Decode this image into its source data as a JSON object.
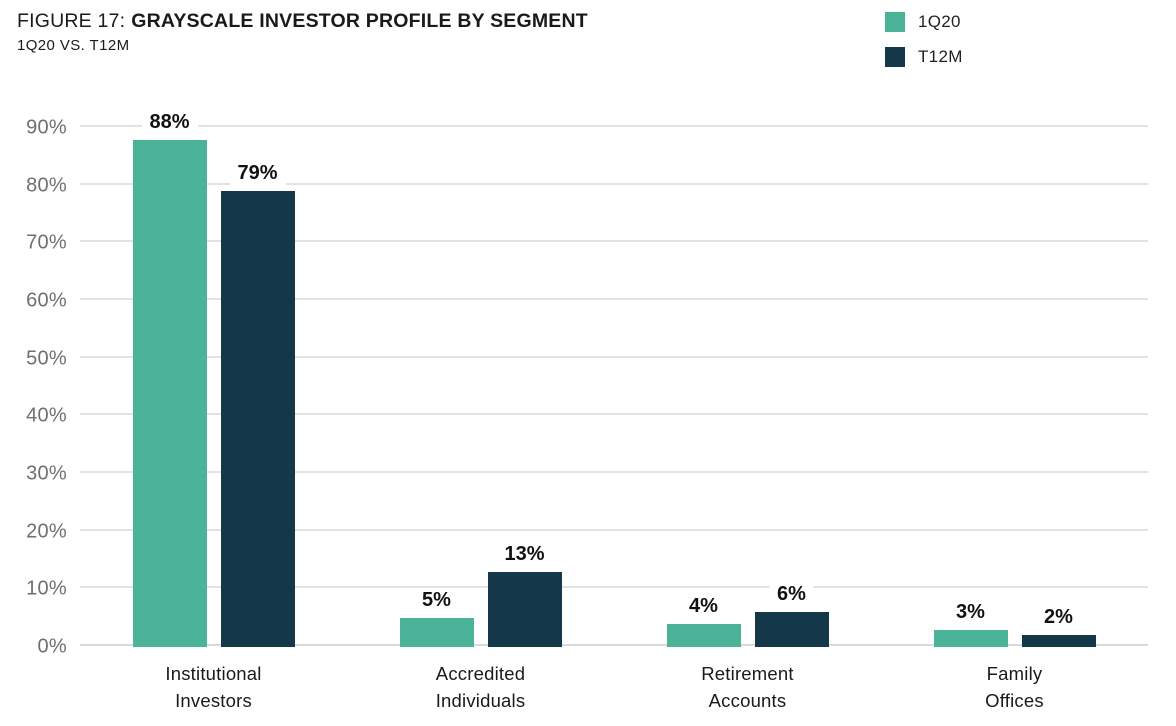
{
  "figure": {
    "title_prefix": "FIGURE 17:",
    "title_main": "GRAYSCALE INVESTOR PROFILE BY SEGMENT",
    "subtitle": "1Q20 VS. T12M"
  },
  "legend": [
    {
      "label": "1Q20",
      "color": "#4bb398"
    },
    {
      "label": "T12M",
      "color": "#14374a"
    }
  ],
  "chart_data": {
    "type": "bar",
    "title": "FIGURE 17: GRAYSCALE INVESTOR PROFILE BY SEGMENT",
    "subtitle": "1Q20 VS. T12M",
    "categories": [
      "Institutional\nInvestors",
      "Accredited\nIndividuals",
      "Retirement\nAccounts",
      "Family\nOffices"
    ],
    "series": [
      {
        "name": "1Q20",
        "color": "#4bb398",
        "values": [
          88,
          5,
          4,
          3
        ]
      },
      {
        "name": "T12M",
        "color": "#14374a",
        "values": [
          79,
          13,
          6,
          2
        ]
      }
    ],
    "value_suffix": "%",
    "xlabel": "",
    "ylabel": "",
    "ylim": [
      0,
      90
    ],
    "yticks": [
      0,
      10,
      20,
      30,
      40,
      50,
      60,
      70,
      80,
      90
    ],
    "ytick_suffix": "%",
    "grid": true,
    "legend_position": "top-right"
  }
}
